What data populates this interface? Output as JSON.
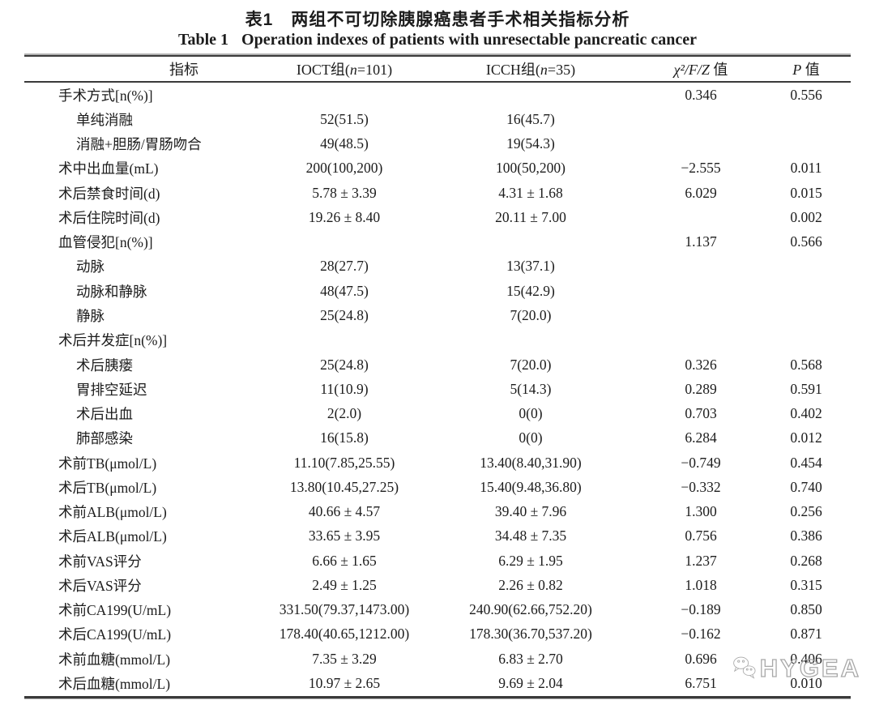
{
  "page": {
    "title_cn": "表1　两组不可切除胰腺癌患者手术相关指标分析",
    "title_en_label": "Table 1",
    "title_en": "Operation indexes of patients with unresectable pancreatic cancer"
  },
  "table": {
    "columns": [
      {
        "key": "indicator",
        "parts": [
          {
            "t": "指标",
            "i": false
          }
        ]
      },
      {
        "key": "ioct-group",
        "parts": [
          {
            "t": "IOCT组(",
            "i": false
          },
          {
            "t": "n",
            "i": true
          },
          {
            "t": "=101)",
            "i": false
          }
        ]
      },
      {
        "key": "icch-group",
        "parts": [
          {
            "t": "ICCH组(",
            "i": false
          },
          {
            "t": "n",
            "i": true
          },
          {
            "t": "=35)",
            "i": false
          }
        ]
      },
      {
        "key": "chi-f-z-value",
        "parts": [
          {
            "t": "χ²/F/Z",
            "i": true
          },
          {
            "t": " 值",
            "i": false
          }
        ]
      },
      {
        "key": "p-value",
        "parts": [
          {
            "t": "P",
            "i": true
          },
          {
            "t": " 值",
            "i": false
          }
        ]
      }
    ],
    "rows": [
      {
        "label": "手术方式[n(%)]",
        "indent": 0,
        "ioct": "",
        "icch": "",
        "stat": "0.346",
        "p": "0.556"
      },
      {
        "label": "单纯消融",
        "indent": 1,
        "ioct": "52(51.5)",
        "icch": "16(45.7)",
        "stat": "",
        "p": ""
      },
      {
        "label": "消融+胆肠/胃肠吻合",
        "indent": 1,
        "ioct": "49(48.5)",
        "icch": "19(54.3)",
        "stat": "",
        "p": ""
      },
      {
        "label": "术中出血量(mL)",
        "indent": 0,
        "ioct": "200(100,200)",
        "icch": "100(50,200)",
        "stat": "−2.555",
        "p": "0.011"
      },
      {
        "label": "术后禁食时间(d)",
        "indent": 0,
        "ioct": "5.78 ± 3.39",
        "icch": "4.31 ± 1.68",
        "stat": "6.029",
        "p": "0.015"
      },
      {
        "label": "术后住院时间(d)",
        "indent": 0,
        "ioct": "19.26 ± 8.40",
        "icch": "20.11 ± 7.00",
        "stat": "",
        "p": "0.002"
      },
      {
        "label": "血管侵犯[n(%)]",
        "indent": 0,
        "ioct": "",
        "icch": "",
        "stat": "1.137",
        "p": "0.566"
      },
      {
        "label": "动脉",
        "indent": 1,
        "ioct": "28(27.7)",
        "icch": "13(37.1)",
        "stat": "",
        "p": ""
      },
      {
        "label": "动脉和静脉",
        "indent": 1,
        "ioct": "48(47.5)",
        "icch": "15(42.9)",
        "stat": "",
        "p": ""
      },
      {
        "label": "静脉",
        "indent": 1,
        "ioct": "25(24.8)",
        "icch": "7(20.0)",
        "stat": "",
        "p": ""
      },
      {
        "label": "术后并发症[n(%)]",
        "indent": 0,
        "ioct": "",
        "icch": "",
        "stat": "",
        "p": ""
      },
      {
        "label": "术后胰瘘",
        "indent": 1,
        "ioct": "25(24.8)",
        "icch": "7(20.0)",
        "stat": "0.326",
        "p": "0.568"
      },
      {
        "label": "胃排空延迟",
        "indent": 1,
        "ioct": "11(10.9)",
        "icch": "5(14.3)",
        "stat": "0.289",
        "p": "0.591"
      },
      {
        "label": "术后出血",
        "indent": 1,
        "ioct": "2(2.0)",
        "icch": "0(0)",
        "stat": "0.703",
        "p": "0.402"
      },
      {
        "label": "肺部感染",
        "indent": 1,
        "ioct": "16(15.8)",
        "icch": "0(0)",
        "stat": "6.284",
        "p": "0.012"
      },
      {
        "label": "术前TB(μmol/L)",
        "indent": 0,
        "ioct": "11.10(7.85,25.55)",
        "icch": "13.40(8.40,31.90)",
        "stat": "−0.749",
        "p": "0.454"
      },
      {
        "label": "术后TB(μmol/L)",
        "indent": 0,
        "ioct": "13.80(10.45,27.25)",
        "icch": "15.40(9.48,36.80)",
        "stat": "−0.332",
        "p": "0.740"
      },
      {
        "label": "术前ALB(μmol/L)",
        "indent": 0,
        "ioct": "40.66 ± 4.57",
        "icch": "39.40 ± 7.96",
        "stat": "1.300",
        "p": "0.256"
      },
      {
        "label": "术后ALB(μmol/L)",
        "indent": 0,
        "ioct": "33.65 ± 3.95",
        "icch": "34.48 ± 7.35",
        "stat": "0.756",
        "p": "0.386"
      },
      {
        "label": "术前VAS评分",
        "indent": 0,
        "ioct": "6.66 ± 1.65",
        "icch": "6.29 ± 1.95",
        "stat": "1.237",
        "p": "0.268"
      },
      {
        "label": "术后VAS评分",
        "indent": 0,
        "ioct": "2.49 ± 1.25",
        "icch": "2.26 ± 0.82",
        "stat": "1.018",
        "p": "0.315"
      },
      {
        "label": "术前CA199(U/mL)",
        "indent": 0,
        "ioct": "331.50(79.37,1473.00)",
        "icch": "240.90(62.66,752.20)",
        "stat": "−0.189",
        "p": "0.850"
      },
      {
        "label": "术后CA199(U/mL)",
        "indent": 0,
        "ioct": "178.40(40.65,1212.00)",
        "icch": "178.30(36.70,537.20)",
        "stat": "−0.162",
        "p": "0.871"
      },
      {
        "label": "术前血糖(mmol/L)",
        "indent": 0,
        "ioct": "7.35 ± 3.29",
        "icch": "6.83 ± 2.70",
        "stat": "0.696",
        "p": "0.406"
      },
      {
        "label": "术后血糖(mmol/L)",
        "indent": 0,
        "ioct": "10.97 ± 2.65",
        "icch": "9.69 ± 2.04",
        "stat": "6.751",
        "p": "0.010"
      }
    ]
  },
  "watermark": {
    "icon": "wechat-chat-bubbles-icon",
    "text": "HYGEA"
  },
  "colors": {
    "rule_dark": "#3a3a3a",
    "rule_light": "#b0b0b0",
    "text": "#1c1c1c",
    "watermark": "#a8a8a8"
  }
}
